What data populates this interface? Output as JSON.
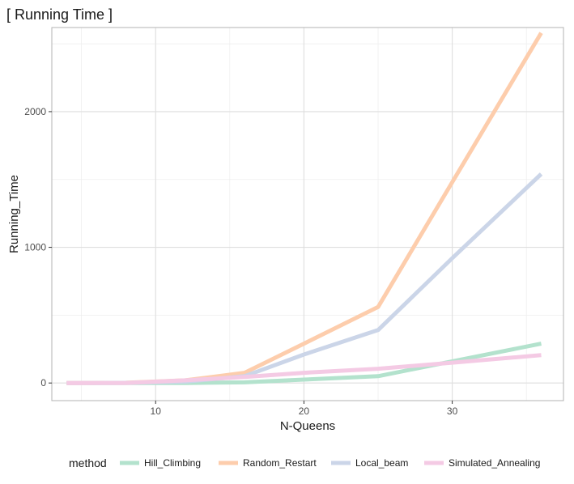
{
  "chart_data": {
    "type": "line",
    "title": "[ Running Time ]",
    "xlabel": "N-Queens",
    "ylabel": "Running_Time",
    "xlim": [
      3,
      37.5
    ],
    "ylim": [
      -130,
      2620
    ],
    "x_ticks": [
      10,
      20,
      30
    ],
    "y_ticks": [
      0,
      1000,
      2000
    ],
    "x_minor_ticks": [
      5,
      15,
      25,
      35
    ],
    "y_minor_ticks": [
      500,
      1500,
      2500
    ],
    "grid": true,
    "legend": {
      "title": "method",
      "position": "bottom"
    },
    "series": [
      {
        "name": "Hill_Climbing",
        "color": "#b3e2cd",
        "x": [
          4,
          8,
          12,
          16,
          20,
          25,
          30,
          36
        ],
        "y": [
          0,
          0,
          0,
          5,
          25,
          50,
          160,
          290
        ]
      },
      {
        "name": "Random_Restart",
        "color": "#fdcdac",
        "x": [
          4,
          8,
          12,
          16,
          20,
          25,
          30,
          36
        ],
        "y": [
          0,
          2,
          20,
          75,
          290,
          560,
          1480,
          2580
        ]
      },
      {
        "name": "Local_beam",
        "color": "#cbd5e8",
        "x": [
          4,
          8,
          12,
          16,
          20,
          25,
          30,
          36
        ],
        "y": [
          0,
          1,
          10,
          50,
          210,
          390,
          920,
          1540
        ]
      },
      {
        "name": "Simulated_Annealing",
        "color": "#f4cae4",
        "x": [
          4,
          8,
          12,
          16,
          20,
          25,
          30,
          36
        ],
        "y": [
          0,
          0,
          20,
          45,
          75,
          105,
          150,
          205
        ]
      }
    ]
  }
}
